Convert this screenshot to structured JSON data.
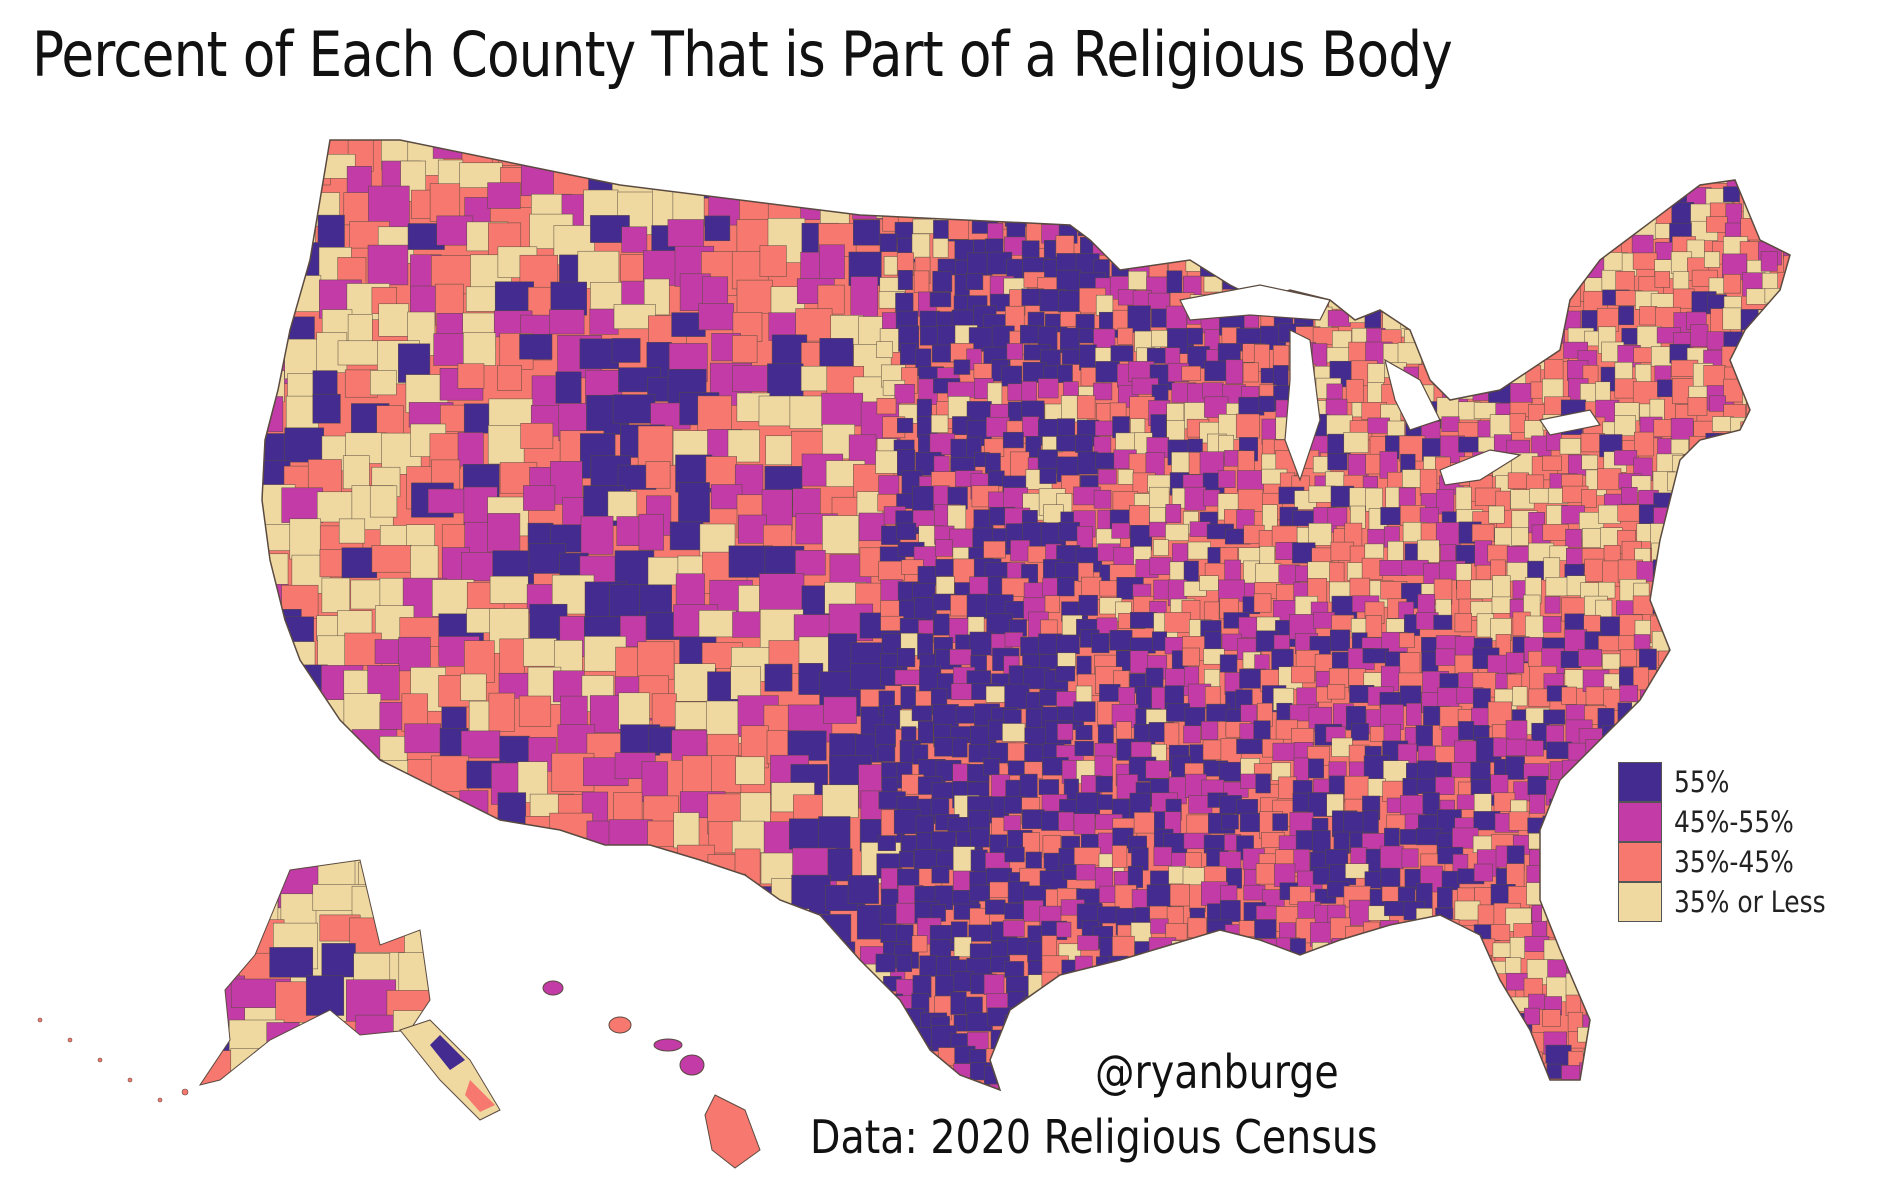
{
  "title": "Percent of Each County That is Part of a Religious Body",
  "legend": {
    "items": [
      {
        "label": "55%",
        "color": "#432b8f"
      },
      {
        "label": "45%-55%",
        "color": "#c23ba6"
      },
      {
        "label": "35%-45%",
        "color": "#f6786e"
      },
      {
        "label": "35% or Less",
        "color": "#efd9a1"
      }
    ]
  },
  "credit": "@ryanburge",
  "source": "Data: 2020 Religious Census",
  "map": {
    "border_color": "#5a4a40",
    "regions": [
      "contiguous-us",
      "alaska",
      "hawaii"
    ]
  }
}
